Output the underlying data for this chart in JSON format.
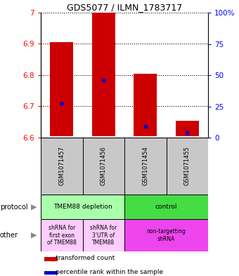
{
  "title": "GDS5077 / ILMN_1783717",
  "samples": [
    "GSM1071457",
    "GSM1071456",
    "GSM1071454",
    "GSM1071455"
  ],
  "bar_bottoms": [
    6.605,
    6.605,
    6.605,
    6.605
  ],
  "bar_tops": [
    6.905,
    7.0,
    6.805,
    6.655
  ],
  "blue_y": [
    6.71,
    6.785,
    6.635,
    6.615
  ],
  "ylim_left": [
    6.6,
    7.0
  ],
  "ylim_right": [
    0,
    100
  ],
  "yticks_left": [
    6.6,
    6.7,
    6.8,
    6.9,
    7.0
  ],
  "ytick_labels_left": [
    "6.6",
    "6.7",
    "6.8",
    "6.9",
    "7"
  ],
  "yticks_right": [
    0,
    25,
    50,
    75,
    100
  ],
  "ytick_labels_right": [
    "0",
    "25",
    "50",
    "75",
    "100%"
  ],
  "bar_color": "#cc0000",
  "blue_color": "#0000cc",
  "bar_width": 0.55,
  "protocol_labels": [
    "TMEM88 depletion",
    "control"
  ],
  "protocol_color_left": "#aaffaa",
  "protocol_color_right": "#44dd44",
  "other_labels": [
    "shRNA for\nfirst exon\nof TMEM88",
    "shRNA for\n3'UTR of\nTMEM88",
    "non-targetting\nshRNA"
  ],
  "other_color_left": "#ffccff",
  "other_color_right": "#ee44ee",
  "legend_red": "transformed count",
  "legend_blue": "percentile rank within the sample",
  "row_label_protocol": "protocol",
  "row_label_other": "other",
  "bg_color": "#c8c8c8",
  "arrow_color": "#888888"
}
